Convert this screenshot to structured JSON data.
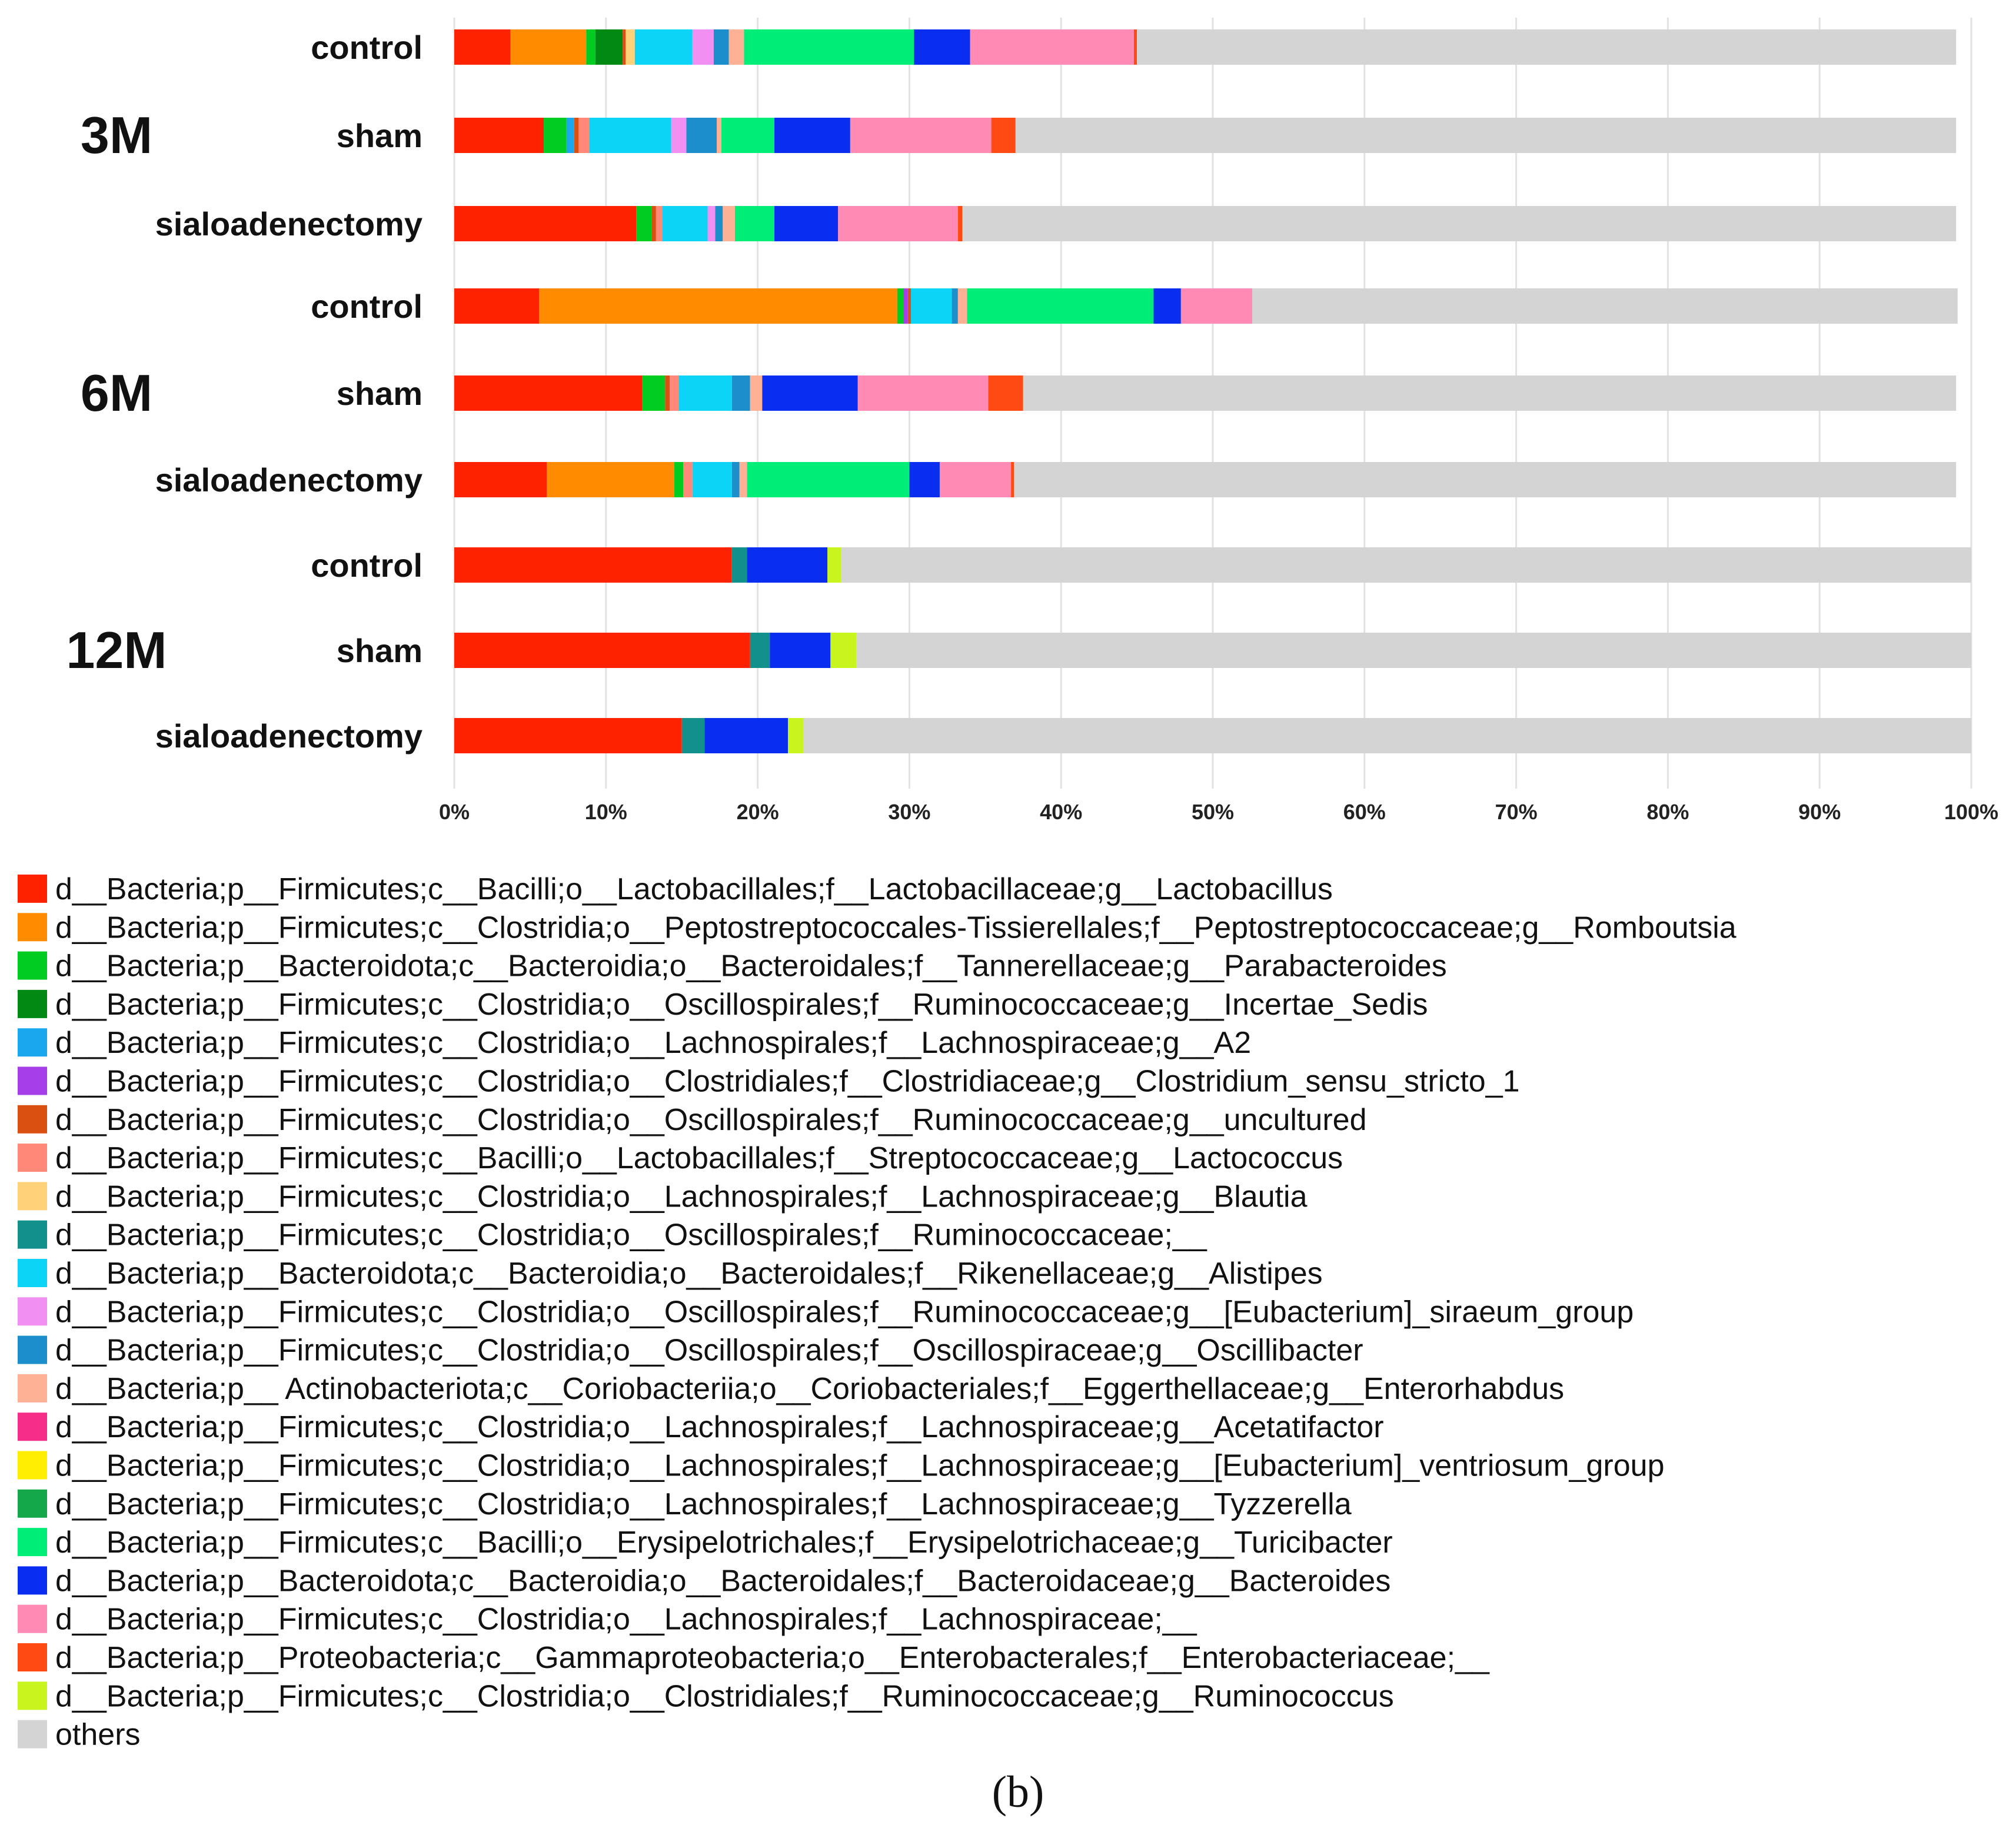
{
  "chart_data": {
    "type": "bar",
    "orientation": "horizontal",
    "stacked": true,
    "percent": true,
    "xlim": [
      0,
      100
    ],
    "xticks": [
      "0%",
      "10%",
      "20%",
      "30%",
      "40%",
      "50%",
      "60%",
      "70%",
      "80%",
      "90%",
      "100%"
    ],
    "grid": true,
    "legend_position": "bottom",
    "groups": [
      {
        "label": "3M",
        "bars": [
          0,
          1,
          2
        ]
      },
      {
        "label": "6M",
        "bars": [
          3,
          4,
          5
        ]
      },
      {
        "label": "12M",
        "bars": [
          6,
          7,
          8
        ]
      }
    ],
    "categories": [
      "control",
      "sham",
      "sialoadenectomy",
      "control",
      "sham",
      "sialoadenectomy",
      "control",
      "sham",
      "sialoadenectomy"
    ],
    "series": [
      {
        "name": "d__Bacteria;p__Firmicutes;c__Bacilli;o__Lactobacillales;f__Lactobacillaceae;g__Lactobacillus",
        "color": "#ff2200",
        "values": [
          3.7,
          5.9,
          12.0,
          5.6,
          12.4,
          6.1,
          18.3,
          19.5,
          15.0
        ]
      },
      {
        "name": "d__Bacteria;p__Firmicutes;c__Clostridia;o__Peptostreptococcales-Tissierellales;f__Peptostreptococcaceae;g__Romboutsia",
        "color": "#ff8c00",
        "values": [
          5.0,
          0,
          0,
          23.6,
          0,
          8.4,
          0,
          0,
          0
        ]
      },
      {
        "name": "d__Bacteria;p__Bacteroidota;c__Bacteroidia;o__Bacteroidales;f__Tannerellaceae;g__Parabacteroides",
        "color": "#00cc22",
        "values": [
          0.6,
          1.5,
          1.0,
          0.4,
          1.5,
          0.6,
          0,
          0,
          0
        ]
      },
      {
        "name": "d__Bacteria;p__Firmicutes;c__Clostridia;o__Oscillospirales;f__Ruminococcaceae;g__Incertae_Sedis",
        "color": "#008a14",
        "values": [
          1.8,
          0,
          0,
          0,
          0,
          0,
          0,
          0,
          0
        ]
      },
      {
        "name": "d__Bacteria;p__Firmicutes;c__Clostridia;o__Lachnospirales;f__Lachnospiraceae;g__A2",
        "color": "#1aa7ee",
        "values": [
          0,
          0.5,
          0,
          0,
          0,
          0,
          0,
          0,
          0
        ]
      },
      {
        "name": "d__Bacteria;p__Firmicutes;c__Clostridia;o__Clostridiales;f__Clostridiaceae;g__Clostridium_sensu_stricto_1",
        "color": "#a63fe8",
        "values": [
          0,
          0,
          0,
          0.3,
          0,
          0,
          0,
          0,
          0
        ]
      },
      {
        "name": "d__Bacteria;p__Firmicutes;c__Clostridia;o__Oscillospirales;f__Ruminococcaceae;g__uncultured",
        "color": "#d95010",
        "values": [
          0.2,
          0.3,
          0.3,
          0.2,
          0.3,
          0,
          0,
          0,
          0
        ]
      },
      {
        "name": "d__Bacteria;p__Firmicutes;c__Bacilli;o__Lactobacillales;f__Streptococcaceae;g__Lactococcus",
        "color": "#ff8878",
        "values": [
          0,
          0.7,
          0.4,
          0,
          0.6,
          0.6,
          0,
          0,
          0
        ]
      },
      {
        "name": "d__Bacteria;p__Firmicutes;c__Clostridia;o__Lachnospirales;f__Lachnospiraceae;g__Blautia",
        "color": "#ffd27a",
        "values": [
          0.6,
          0,
          0,
          0,
          0,
          0,
          0,
          0,
          0
        ]
      },
      {
        "name": "d__Bacteria;p__Firmicutes;c__Clostridia;o__Oscillospirales;f__Ruminococcaceae;__",
        "color": "#12908c",
        "values": [
          0,
          0,
          0,
          0,
          0,
          0,
          1.0,
          1.3,
          1.5
        ]
      },
      {
        "name": "d__Bacteria;p__Bacteroidota;c__Bacteroidia;o__Bacteroidales;f__Rikenellaceae;g__Alistipes",
        "color": "#0bd4f6",
        "values": [
          3.8,
          5.4,
          3.0,
          2.7,
          3.5,
          2.6,
          0,
          0,
          0
        ]
      },
      {
        "name": "d__Bacteria;p__Firmicutes;c__Clostridia;o__Oscillospirales;f__Ruminococcaceae;g__[Eubacterium]_siraeum_group",
        "color": "#f28ff2",
        "values": [
          1.4,
          1.0,
          0.5,
          0,
          0,
          0,
          0,
          0,
          0
        ]
      },
      {
        "name": "d__Bacteria;p__Firmicutes;c__Clostridia;o__Oscillospirales;f__Oscillospiraceae;g__Oscillibacter",
        "color": "#1c8fca",
        "values": [
          1.0,
          2.0,
          0.5,
          0.4,
          1.2,
          0.5,
          0,
          0,
          0
        ]
      },
      {
        "name": "d__Bacteria;p__ Actinobacteriota;c__Coriobacteriia;o__Coriobacteriales;f__Eggerthellaceae;g__Enterorhabdus",
        "color": "#ffb195",
        "values": [
          1.0,
          0.3,
          0.8,
          0.6,
          0.8,
          0.5,
          0,
          0,
          0
        ]
      },
      {
        "name": "d__Bacteria;p__Firmicutes;c__Clostridia;o__Lachnospirales;f__Lachnospiraceae;g__Acetatifactor",
        "color": "#f72d8a",
        "values": [
          0,
          0,
          0,
          0,
          0,
          0,
          0,
          0,
          0
        ]
      },
      {
        "name": "d__Bacteria;p__Firmicutes;c__Clostridia;o__Lachnospirales;f__Lachnospiraceae;g__[Eubacterium]_ventriosum_group",
        "color": "#ffee00",
        "values": [
          0,
          0,
          0,
          0,
          0,
          0,
          0,
          0,
          0
        ]
      },
      {
        "name": "d__Bacteria;p__Firmicutes;c__Clostridia;o__Lachnospirales;f__Lachnospiraceae;g__Tyzzerella",
        "color": "#14a84a",
        "values": [
          0,
          0,
          0,
          0,
          0,
          0,
          0,
          0,
          0
        ]
      },
      {
        "name": "d__Bacteria;p__Firmicutes;c__Bacilli;o__Erysipelotrichales;f__Erysipelotrichaceae;g__Turicibacter",
        "color": "#00ee77",
        "values": [
          11.2,
          3.5,
          2.6,
          12.3,
          0,
          10.7,
          0,
          0,
          0
        ]
      },
      {
        "name": "d__Bacteria;p__Bacteroidota;c__Bacteroidia;o__Bacteroidales;f__Bacteroidaceae;g__Bacteroides",
        "color": "#0a2ef0",
        "values": [
          3.7,
          5.0,
          4.2,
          1.8,
          6.3,
          2.0,
          5.3,
          4.0,
          5.5
        ]
      },
      {
        "name": "d__Bacteria;p__Firmicutes;c__Clostridia;o__Lachnospirales;f__Lachnospiraceae;__",
        "color": "#ff8ab4",
        "values": [
          10.8,
          9.3,
          7.9,
          4.7,
          8.6,
          4.7,
          0,
          0,
          0
        ]
      },
      {
        "name": "d__Bacteria;p__Proteobacteria;c__Gammaproteobacteria;o__Enterobacterales;f__Enterobacteriaceae;__",
        "color": "#ff4a14",
        "values": [
          0.2,
          1.6,
          0.3,
          0,
          2.3,
          0.2,
          0,
          0,
          0
        ]
      },
      {
        "name": "d__Bacteria;p__Firmicutes;c__Clostridia;o__Clostridiales;f__Ruminococcaceae;g__Ruminococcus",
        "color": "#c8f51e",
        "values": [
          0,
          0,
          0,
          0,
          0,
          0,
          0.9,
          1.7,
          1.0
        ]
      },
      {
        "name": "others",
        "color": "#d4d4d4",
        "values": [
          54.0,
          62.0,
          65.5,
          46.5,
          61.5,
          62.1,
          74.5,
          73.5,
          77.0
        ]
      }
    ],
    "caption": "(b)"
  }
}
